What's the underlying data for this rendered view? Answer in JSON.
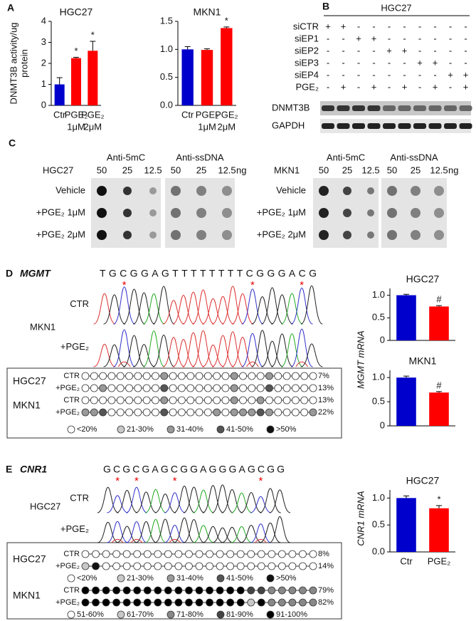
{
  "panel_letters": [
    "A",
    "B",
    "C",
    "D",
    "E"
  ],
  "chart_data": [
    {
      "type": "bar",
      "title": "HGC27",
      "ylabel": [
        "DNMT3B activity/ug",
        "protein"
      ],
      "categories": [
        [
          "Ctr"
        ],
        [
          "PGE₂",
          "1μM"
        ],
        [
          "PGE₂",
          "2μM"
        ]
      ],
      "values": [
        1.0,
        2.25,
        2.6
      ],
      "errors": [
        0.32,
        0.04,
        0.45
      ],
      "colors": [
        "#0000cc",
        "#ff0000",
        "#ff0000"
      ],
      "annotations": [
        null,
        "*",
        "*"
      ],
      "ylim": [
        0,
        4
      ],
      "yticks": [
        0,
        1,
        2,
        3,
        4
      ]
    },
    {
      "type": "bar",
      "title": "MKN1",
      "categories": [
        [
          "Ctr"
        ],
        [
          "PGE₂",
          "1μM"
        ],
        [
          "PGE₂",
          "2μM"
        ]
      ],
      "values": [
        1.0,
        0.99,
        1.38
      ],
      "errors": [
        0.05,
        0.02,
        0.02
      ],
      "colors": [
        "#0000cc",
        "#ff0000",
        "#ff0000"
      ],
      "annotations": [
        null,
        null,
        "*"
      ],
      "ylim": [
        0,
        1.5
      ],
      "yticks": [
        {
          "value": 0,
          "label": "0.0"
        },
        0.5,
        {
          "value": 1,
          "label": "1.0"
        },
        1.5
      ]
    },
    {
      "type": "bar",
      "title": "HGC27",
      "ylabel": "MGMT mRNA",
      "categories": [
        null,
        null
      ],
      "values": [
        1.0,
        0.75
      ],
      "errors": [
        0.02,
        0.02
      ],
      "colors": [
        "#0000cc",
        "#ff0000"
      ],
      "annotations": [
        null,
        "#"
      ],
      "ylim": [
        0,
        1.15
      ],
      "yticks": [
        0,
        0.5,
        {
          "value": 1,
          "label": "1.0"
        }
      ]
    },
    {
      "type": "bar",
      "title": "MKN1",
      "categories": [
        null,
        null
      ],
      "values": [
        1.0,
        0.69
      ],
      "errors": [
        0.03,
        0.02
      ],
      "colors": [
        "#0000cc",
        "#ff0000"
      ],
      "annotations": [
        null,
        "#"
      ],
      "ylim": [
        0,
        1.15
      ],
      "yticks": [
        0,
        0.5,
        {
          "value": 1,
          "label": "1.0"
        }
      ]
    },
    {
      "type": "bar",
      "title": "HGC27",
      "ylabel": "CNR1 mRNA",
      "categories": [
        [
          "Ctr"
        ],
        [
          "PGE₂"
        ]
      ],
      "values": [
        1.0,
        0.81
      ],
      "errors": [
        0.04,
        0.05
      ],
      "colors": [
        "#0000cc",
        "#ff0000"
      ],
      "annotations": [
        null,
        "*"
      ],
      "ylim": [
        0,
        1.15
      ],
      "yticks": [
        {
          "value": 0,
          "label": "0.0"
        },
        0.5,
        {
          "value": 1,
          "label": "1.0"
        }
      ]
    }
  ],
  "blot": {
    "title": "HGC27",
    "rows": [
      {
        "label": "siCTR",
        "signs": [
          "+",
          "+",
          "-",
          "-",
          "-",
          "-",
          "-",
          "-",
          "-",
          "-"
        ]
      },
      {
        "label": "siEP1",
        "signs": [
          "-",
          "-",
          "+",
          "+",
          "-",
          "-",
          "-",
          "-",
          "-",
          "-"
        ]
      },
      {
        "label": "siEP2",
        "signs": [
          "-",
          "-",
          "-",
          "-",
          "+",
          "+",
          "-",
          "-",
          "-",
          "-"
        ]
      },
      {
        "label": "siEP3",
        "signs": [
          "-",
          "-",
          "-",
          "-",
          "-",
          "-",
          "+",
          "+",
          "-",
          "-"
        ]
      },
      {
        "label": "siEP4",
        "signs": [
          "-",
          "-",
          "-",
          "-",
          "-",
          "-",
          "-",
          "-",
          "+",
          "+"
        ]
      },
      {
        "label": "PGE₂",
        "signs": [
          "-",
          "+",
          "-",
          "+",
          "-",
          "+",
          "-",
          "+",
          "-",
          "+"
        ]
      }
    ],
    "bands": [
      "DNMT3B",
      "GAPDH"
    ]
  },
  "dot_blot": [
    {
      "cell": "HGC27",
      "antibodies": [
        "Anti-5mC",
        "Anti-ssDNA"
      ],
      "amounts": [
        "50",
        "25",
        "12.5"
      ],
      "unit": "ng",
      "rows": [
        "Vehicle",
        "+PGE₂ 1μM",
        "+PGE₂ 2μM"
      ]
    },
    {
      "cell": "MKN1",
      "antibodies": [
        "Anti-5mC",
        "Anti-ssDNA"
      ],
      "amounts": [
        "50",
        "25",
        "12.5"
      ],
      "unit": "ng",
      "rows": [
        "Vehicle",
        "+PGE₂ 1μM",
        "+PGE₂ 2μM"
      ]
    }
  ],
  "sequencing": [
    {
      "gene": "MGMT",
      "sequence": "TGCGGAGTTTTTTTTCGGGACG",
      "stars": [
        "*",
        "*",
        "*"
      ],
      "cell": "MKN1",
      "samples": [
        "CTR",
        "+PGE₂"
      ]
    },
    {
      "gene": "CNR1",
      "sequence": "GCGCGAGCGGAGGGAGCGG",
      "stars": [
        "*",
        "*",
        "*",
        "*"
      ],
      "cell": "HGC27",
      "samples": [
        "CTR",
        "+PGE₂"
      ]
    }
  ],
  "methylation": [
    {
      "groups": [
        {
          "cell": "HGC27",
          "rows": [
            {
              "label": "CTR",
              "percent": "7%"
            },
            {
              "label": "+PGE₂",
              "percent": "13%"
            }
          ]
        },
        {
          "cell": "MKN1",
          "rows": [
            {
              "label": "CTR",
              "percent": "13%"
            },
            {
              "label": "+PGE₂",
              "percent": "22%"
            }
          ],
          "legend": [
            "<20%",
            "21-30%",
            "31-40%",
            "41-50%",
            ">50%"
          ]
        }
      ]
    },
    {
      "groups": [
        {
          "cell": "HGC27",
          "rows": [
            {
              "label": "CTR",
              "percent": "8%"
            },
            {
              "label": "+PGE₂",
              "percent": "14%"
            }
          ],
          "legend": [
            "<20%",
            "21-30%",
            "31-40%",
            "41-50%",
            ">50%"
          ]
        },
        {
          "cell": "MKN1",
          "rows": [
            {
              "label": "CTR",
              "percent": "79%"
            },
            {
              "label": "+PGE₂",
              "percent": "82%"
            }
          ],
          "legend": [
            "51-60%",
            "61-70%",
            "71-80%",
            "81-90%",
            "91-100%"
          ]
        }
      ]
    }
  ]
}
